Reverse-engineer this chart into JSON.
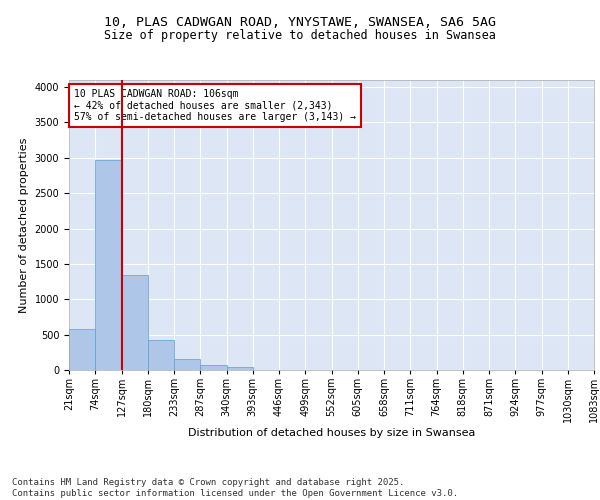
{
  "title_line1": "10, PLAS CADWGAN ROAD, YNYSTAWE, SWANSEA, SA6 5AG",
  "title_line2": "Size of property relative to detached houses in Swansea",
  "xlabel": "Distribution of detached houses by size in Swansea",
  "ylabel": "Number of detached properties",
  "bar_values": [
    580,
    2970,
    1340,
    430,
    155,
    70,
    40,
    0,
    0,
    0,
    0,
    0,
    0,
    0,
    0,
    0,
    0,
    0,
    0,
    0
  ],
  "bin_labels": [
    "21sqm",
    "74sqm",
    "127sqm",
    "180sqm",
    "233sqm",
    "287sqm",
    "340sqm",
    "393sqm",
    "446sqm",
    "499sqm",
    "552sqm",
    "605sqm",
    "658sqm",
    "711sqm",
    "764sqm",
    "818sqm",
    "871sqm",
    "924sqm",
    "977sqm",
    "1030sqm",
    "1083sqm"
  ],
  "bar_color": "#aec6e8",
  "bar_edge_color": "#5a9fd4",
  "background_color": "#dce6f5",
  "grid_color": "#ffffff",
  "vline_color": "#cc0000",
  "annotation_text": "10 PLAS CADWGAN ROAD: 106sqm\n← 42% of detached houses are smaller (2,343)\n57% of semi-detached houses are larger (3,143) →",
  "annotation_box_color": "#cc0000",
  "ylim": [
    0,
    4100
  ],
  "yticks": [
    0,
    500,
    1000,
    1500,
    2000,
    2500,
    3000,
    3500,
    4000
  ],
  "footer_text": "Contains HM Land Registry data © Crown copyright and database right 2025.\nContains public sector information licensed under the Open Government Licence v3.0.",
  "title_fontsize": 9.5,
  "subtitle_fontsize": 8.5,
  "axis_label_fontsize": 8,
  "tick_fontsize": 7,
  "annotation_fontsize": 7,
  "footer_fontsize": 6.5
}
